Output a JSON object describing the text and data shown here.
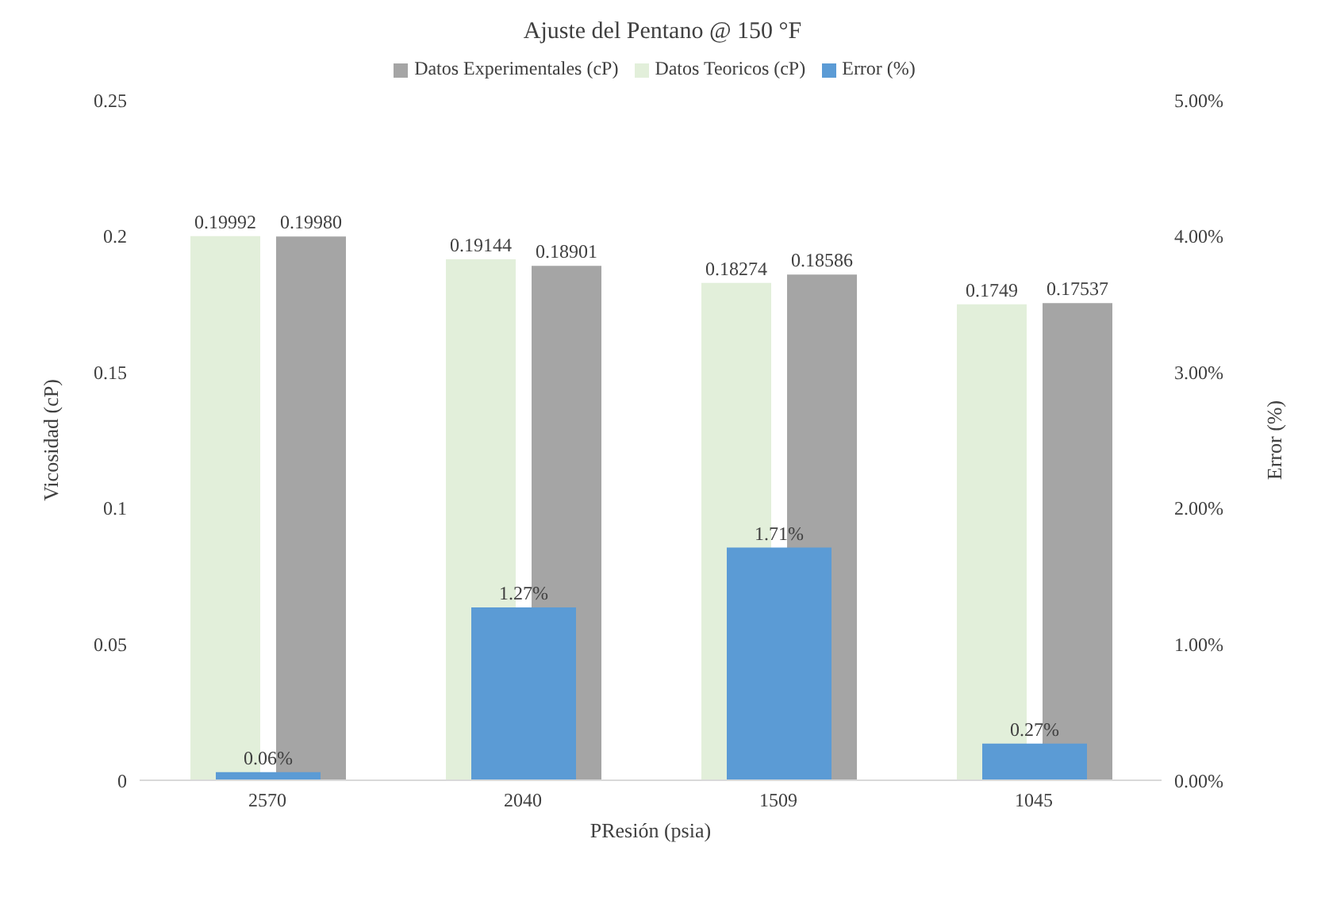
{
  "chart_data": {
    "type": "bar",
    "title": "Ajuste del Pentano @ 150 °F",
    "xlabel": "PResión (psia)",
    "ylabel": "Vicosidad (cP)",
    "y2label": "Error (%)",
    "categories": [
      "2570",
      "2040",
      "1509",
      "1045"
    ],
    "series": [
      {
        "name": "Datos Teoricos (cP)",
        "color": "#e2efda",
        "values": [
          0.19992,
          0.19144,
          0.18274,
          0.1749
        ],
        "value_labels": [
          "0.19992",
          "0.19144",
          "0.18274",
          "0.1749"
        ]
      },
      {
        "name": "Datos Experimentales (cP)",
        "color": "#a5a5a5",
        "values": [
          0.1998,
          0.18901,
          0.18586,
          0.17537
        ],
        "value_labels": [
          "0.19980",
          "0.18901",
          "0.18586",
          "0.17537"
        ]
      },
      {
        "name": "Error (%)",
        "color": "#5b9bd5",
        "axis": "y2",
        "values": [
          0.06,
          1.27,
          1.71,
          0.27
        ],
        "value_labels": [
          "0.06%",
          "1.27%",
          "1.71%",
          "0.27%"
        ]
      }
    ],
    "ylim": [
      0,
      0.25
    ],
    "yticks": [
      0,
      0.05,
      0.1,
      0.15,
      0.2,
      0.25
    ],
    "y2lim": [
      0,
      5
    ],
    "y2ticks": [
      {
        "value": 0,
        "label": "0.00%"
      },
      {
        "value": 1,
        "label": "1.00%"
      },
      {
        "value": 2,
        "label": "2.00%"
      },
      {
        "value": 3,
        "label": "3.00%"
      },
      {
        "value": 4,
        "label": "4.00%"
      },
      {
        "value": 5,
        "label": "5.00%"
      }
    ],
    "legend": "top",
    "grid": false
  }
}
